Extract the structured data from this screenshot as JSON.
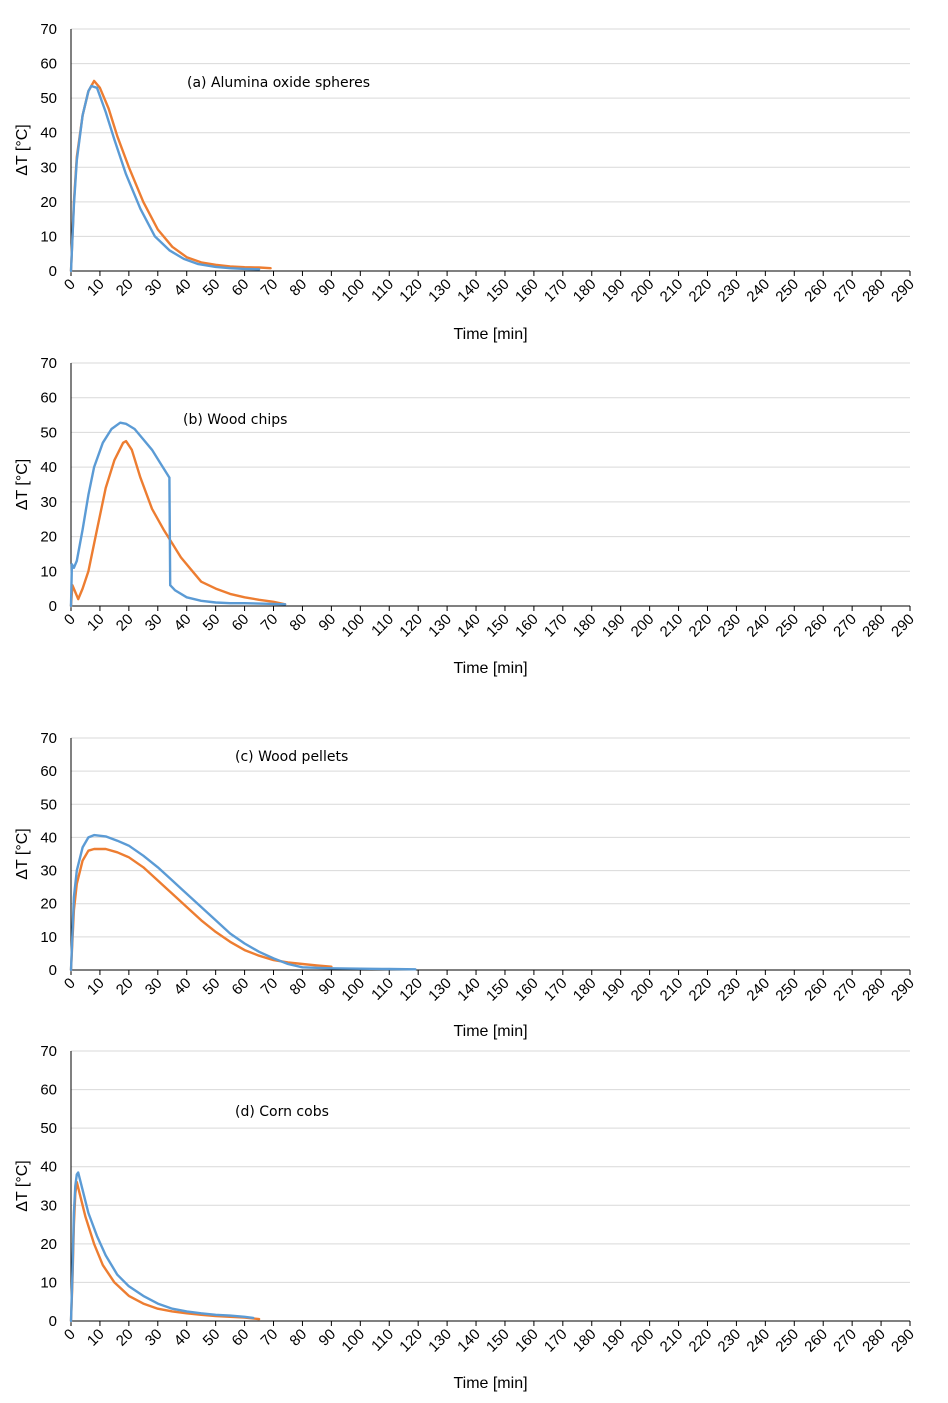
{
  "colors": {
    "blue": "#5B9BD5",
    "orange": "#ED7D31",
    "grid": "#d9d9d9"
  },
  "chart_data": [
    {
      "type": "line",
      "annotation": "(a) Alumina oxide spheres",
      "xlabel": "Time [min]",
      "ylabel": "ΔT [°C]",
      "xlim": [
        0,
        290
      ],
      "ylim": [
        0,
        70
      ],
      "xticks": [
        0,
        10,
        20,
        30,
        40,
        50,
        60,
        70,
        80,
        90,
        100,
        110,
        120,
        130,
        140,
        150,
        160,
        170,
        180,
        190,
        200,
        210,
        220,
        230,
        240,
        250,
        260,
        270,
        280,
        290
      ],
      "yticks": [
        0,
        10,
        20,
        30,
        40,
        50,
        60,
        70
      ],
      "series": [
        {
          "name": "orange",
          "color": "#ED7D31",
          "points": [
            [
              0,
              0
            ],
            [
              1,
              20
            ],
            [
              2,
              33
            ],
            [
              4,
              45
            ],
            [
              6,
              52
            ],
            [
              8,
              55
            ],
            [
              10,
              53
            ],
            [
              13,
              47
            ],
            [
              16,
              39
            ],
            [
              20,
              30
            ],
            [
              25,
              20
            ],
            [
              30,
              12
            ],
            [
              35,
              7
            ],
            [
              40,
              4
            ],
            [
              45,
              2.5
            ],
            [
              50,
              1.8
            ],
            [
              55,
              1.3
            ],
            [
              60,
              1.1
            ],
            [
              65,
              1.0
            ],
            [
              69,
              0.8
            ]
          ]
        },
        {
          "name": "blue",
          "color": "#5B9BD5",
          "points": [
            [
              0,
              0
            ],
            [
              1,
              19
            ],
            [
              2,
              32
            ],
            [
              4,
              45
            ],
            [
              6,
              52
            ],
            [
              7,
              53.5
            ],
            [
              9,
              53
            ],
            [
              12,
              46
            ],
            [
              15,
              38
            ],
            [
              19,
              28
            ],
            [
              24,
              18
            ],
            [
              29,
              10
            ],
            [
              34,
              6
            ],
            [
              39,
              3.5
            ],
            [
              44,
              2
            ],
            [
              50,
              1.2
            ],
            [
              55,
              0.8
            ],
            [
              60,
              0.6
            ],
            [
              65,
              0.5
            ]
          ]
        }
      ]
    },
    {
      "type": "line",
      "annotation": "(b) Wood chips",
      "xlabel": "Time [min]",
      "ylabel": "ΔT [°C]",
      "xlim": [
        0,
        290
      ],
      "ylim": [
        0,
        70
      ],
      "xticks": [
        0,
        10,
        20,
        30,
        40,
        50,
        60,
        70,
        80,
        90,
        100,
        110,
        120,
        130,
        140,
        150,
        160,
        170,
        180,
        190,
        200,
        210,
        220,
        230,
        240,
        250,
        260,
        270,
        280,
        290
      ],
      "yticks": [
        0,
        10,
        20,
        30,
        40,
        50,
        60,
        70
      ],
      "series": [
        {
          "name": "orange",
          "color": "#ED7D31",
          "points": [
            [
              0,
              0
            ],
            [
              0.5,
              6
            ],
            [
              1.5,
              4
            ],
            [
              2.5,
              2
            ],
            [
              4,
              5
            ],
            [
              6,
              10
            ],
            [
              9,
              22
            ],
            [
              12,
              34
            ],
            [
              15,
              42
            ],
            [
              18,
              47
            ],
            [
              19,
              47.5
            ],
            [
              21,
              45
            ],
            [
              24,
              37
            ],
            [
              28,
              28
            ],
            [
              32,
              22
            ],
            [
              35,
              18
            ],
            [
              38,
              14
            ],
            [
              42,
              10
            ],
            [
              45,
              7
            ],
            [
              50,
              5
            ],
            [
              55,
              3.5
            ],
            [
              60,
              2.5
            ],
            [
              65,
              1.8
            ],
            [
              70,
              1.2
            ],
            [
              74,
              0.5
            ]
          ]
        },
        {
          "name": "blue",
          "color": "#5B9BD5",
          "points": [
            [
              0,
              0
            ],
            [
              0.3,
              12
            ],
            [
              1,
              11
            ],
            [
              2,
              13
            ],
            [
              4,
              22
            ],
            [
              6,
              32
            ],
            [
              8,
              40
            ],
            [
              11,
              47
            ],
            [
              14,
              51
            ],
            [
              17,
              52.8
            ],
            [
              19,
              52.5
            ],
            [
              22,
              51
            ],
            [
              25,
              48
            ],
            [
              28,
              45
            ],
            [
              31,
              41
            ],
            [
              34,
              37
            ],
            [
              34.3,
              6
            ],
            [
              36,
              4.5
            ],
            [
              40,
              2.5
            ],
            [
              45,
              1.5
            ],
            [
              50,
              1
            ],
            [
              55,
              0.8
            ],
            [
              60,
              0.8
            ],
            [
              65,
              0.7
            ],
            [
              70,
              0.6
            ],
            [
              74,
              0.5
            ]
          ]
        }
      ]
    },
    {
      "type": "line",
      "annotation": "(c) Wood pellets",
      "xlabel": "Time [min]",
      "ylabel": "ΔT [°C]",
      "xlim": [
        0,
        290
      ],
      "ylim": [
        0,
        70
      ],
      "xticks": [
        0,
        10,
        20,
        30,
        40,
        50,
        60,
        70,
        80,
        90,
        100,
        110,
        120,
        130,
        140,
        150,
        160,
        170,
        180,
        190,
        200,
        210,
        220,
        230,
        240,
        250,
        260,
        270,
        280,
        290
      ],
      "yticks": [
        0,
        10,
        20,
        30,
        40,
        50,
        60,
        70
      ],
      "series": [
        {
          "name": "orange",
          "color": "#ED7D31",
          "points": [
            [
              0,
              0
            ],
            [
              1,
              18
            ],
            [
              2,
              26
            ],
            [
              4,
              33
            ],
            [
              6,
              36
            ],
            [
              8,
              36.5
            ],
            [
              12,
              36.5
            ],
            [
              16,
              35.5
            ],
            [
              20,
              34
            ],
            [
              25,
              31
            ],
            [
              30,
              27
            ],
            [
              35,
              23
            ],
            [
              40,
              19
            ],
            [
              45,
              15
            ],
            [
              50,
              11.5
            ],
            [
              55,
              8.5
            ],
            [
              60,
              6
            ],
            [
              65,
              4.3
            ],
            [
              70,
              3
            ],
            [
              75,
              2.3
            ],
            [
              80,
              1.8
            ],
            [
              85,
              1.4
            ],
            [
              90,
              1
            ]
          ]
        },
        {
          "name": "blue",
          "color": "#5B9BD5",
          "points": [
            [
              0,
              0
            ],
            [
              1,
              22
            ],
            [
              2,
              30
            ],
            [
              4,
              37
            ],
            [
              6,
              40
            ],
            [
              8,
              40.7
            ],
            [
              12,
              40.3
            ],
            [
              16,
              39
            ],
            [
              20,
              37.5
            ],
            [
              25,
              34.5
            ],
            [
              30,
              31
            ],
            [
              35,
              27
            ],
            [
              40,
              23
            ],
            [
              45,
              19
            ],
            [
              50,
              15
            ],
            [
              55,
              11
            ],
            [
              60,
              8
            ],
            [
              65,
              5.5
            ],
            [
              70,
              3.5
            ],
            [
              75,
              1.8
            ],
            [
              80,
              0.8
            ],
            [
              90,
              0.5
            ],
            [
              100,
              0.4
            ],
            [
              110,
              0.3
            ],
            [
              119,
              0.2
            ]
          ]
        }
      ]
    },
    {
      "type": "line",
      "annotation": "(d) Corn cobs",
      "xlabel": "Time [min]",
      "ylabel": "ΔT [°C]",
      "xlim": [
        0,
        290
      ],
      "ylim": [
        0,
        70
      ],
      "xticks": [
        0,
        10,
        20,
        30,
        40,
        50,
        60,
        70,
        80,
        90,
        100,
        110,
        120,
        130,
        140,
        150,
        160,
        170,
        180,
        190,
        200,
        210,
        220,
        230,
        240,
        250,
        260,
        270,
        280,
        290
      ],
      "yticks": [
        0,
        10,
        20,
        30,
        40,
        50,
        60,
        70
      ],
      "series": [
        {
          "name": "orange",
          "color": "#ED7D31",
          "points": [
            [
              0,
              0
            ],
            [
              0.5,
              10
            ],
            [
              1,
              25
            ],
            [
              1.5,
              33
            ],
            [
              2,
              36
            ],
            [
              3,
              33
            ],
            [
              5,
              27
            ],
            [
              8,
              20
            ],
            [
              11,
              14.5
            ],
            [
              15,
              10
            ],
            [
              20,
              6.5
            ],
            [
              25,
              4.5
            ],
            [
              30,
              3.2
            ],
            [
              35,
              2.5
            ],
            [
              40,
              2
            ],
            [
              45,
              1.6
            ],
            [
              50,
              1.3
            ],
            [
              55,
              1.1
            ],
            [
              60,
              0.9
            ],
            [
              65,
              0.5
            ]
          ]
        },
        {
          "name": "blue",
          "color": "#5B9BD5",
          "points": [
            [
              0,
              0
            ],
            [
              0.5,
              12
            ],
            [
              1,
              28
            ],
            [
              1.5,
              35
            ],
            [
              2,
              38
            ],
            [
              2.5,
              38.5
            ],
            [
              4,
              34
            ],
            [
              6,
              28
            ],
            [
              9,
              22
            ],
            [
              12,
              17
            ],
            [
              16,
              12
            ],
            [
              20,
              9
            ],
            [
              25,
              6.5
            ],
            [
              30,
              4.5
            ],
            [
              35,
              3.2
            ],
            [
              40,
              2.5
            ],
            [
              45,
              2
            ],
            [
              50,
              1.6
            ],
            [
              55,
              1.4
            ],
            [
              60,
              1.1
            ],
            [
              63,
              0.8
            ]
          ]
        }
      ]
    }
  ]
}
